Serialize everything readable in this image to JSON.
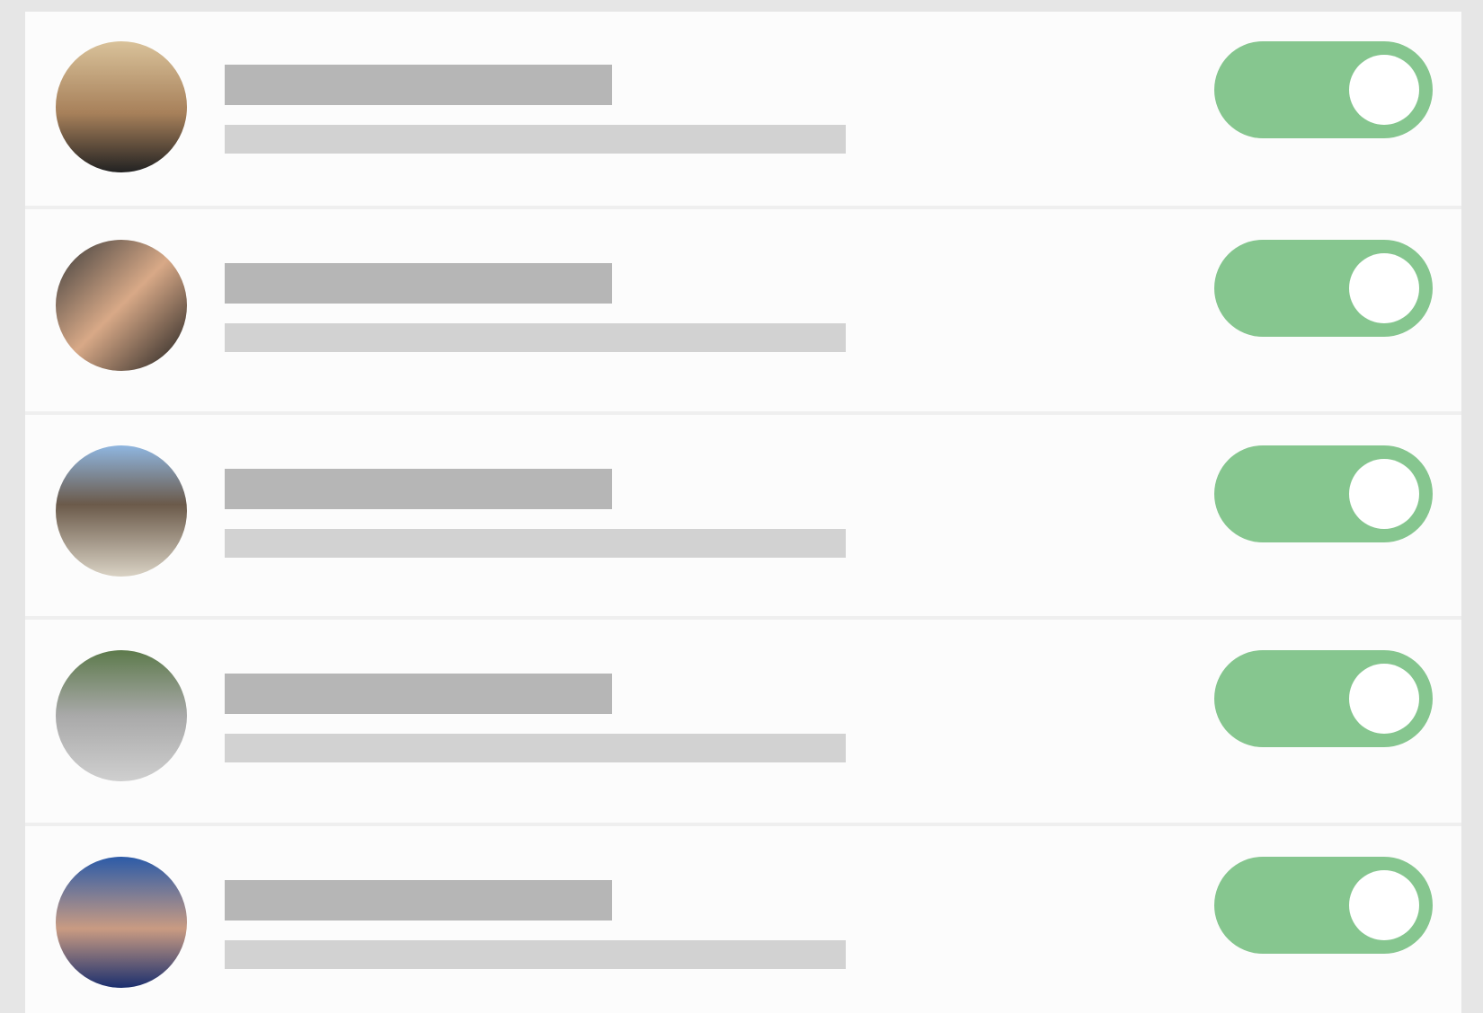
{
  "rows": [
    {
      "toggle_on": true
    },
    {
      "toggle_on": true
    },
    {
      "toggle_on": true
    },
    {
      "toggle_on": true
    },
    {
      "toggle_on": true
    }
  ]
}
